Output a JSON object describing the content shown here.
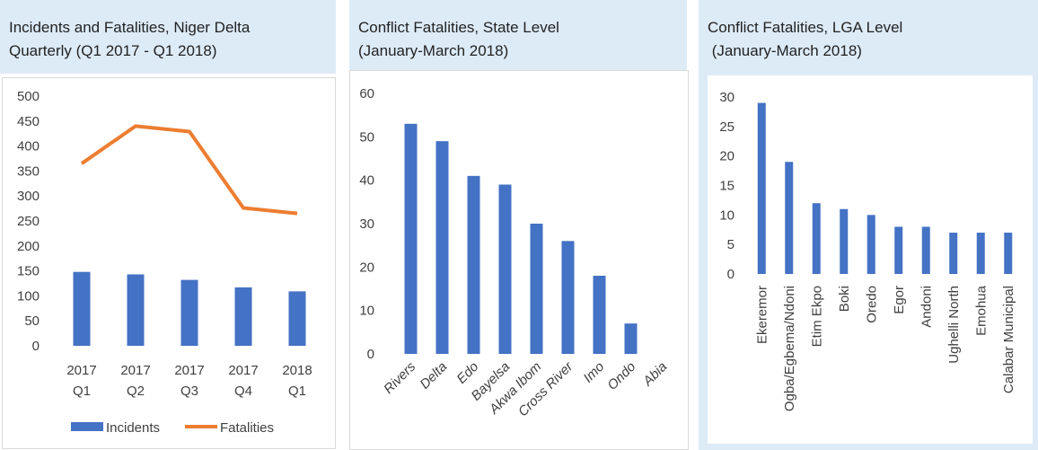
{
  "colors": {
    "bar": "#4472c4",
    "line": "#ed7d31",
    "header": "#ddebf7"
  },
  "panels": [
    {
      "title_line1": "Incidents and Fatalities, Niger Delta",
      "title_line2": "Quarterly (Q1 2017 - Q1 2018)"
    },
    {
      "title_line1": "Conflict Fatalities, State Level",
      "title_line2": "(January-March 2018)"
    },
    {
      "title_line1": "Conflict Fatalities, LGA Level",
      "title_line2": " (January-March 2018)"
    }
  ],
  "chart_data": [
    {
      "type": "bar",
      "title": "Incidents and Fatalities, Niger Delta Quarterly (Q1 2017 - Q1 2018)",
      "categories": [
        [
          "2017",
          "Q1"
        ],
        [
          "2017",
          "Q2"
        ],
        [
          "2017",
          "Q3"
        ],
        [
          "2017",
          "Q4"
        ],
        [
          "2018",
          "Q1"
        ]
      ],
      "series": [
        {
          "name": "Incidents",
          "type": "bar",
          "values": [
            148,
            143,
            132,
            117,
            109
          ]
        },
        {
          "name": "Fatalities",
          "type": "line",
          "values": [
            365,
            440,
            429,
            276,
            265
          ]
        }
      ],
      "ylim": [
        0,
        500
      ],
      "yticks": [
        0,
        50,
        100,
        150,
        200,
        250,
        300,
        350,
        400,
        450,
        500
      ],
      "legend": "bottom",
      "grid": false
    },
    {
      "type": "bar",
      "title": "Conflict Fatalities, State Level (January-March 2018)",
      "categories": [
        "Rivers",
        "Delta",
        "Edo",
        "Bayelsa",
        "Akwa Ibom",
        "Cross River",
        "Imo",
        "Ondo",
        "Abia"
      ],
      "values": [
        53,
        49,
        41,
        39,
        30,
        26,
        18,
        7,
        0
      ],
      "ylim": [
        0,
        60
      ],
      "yticks": [
        0,
        10,
        20,
        30,
        40,
        50,
        60
      ],
      "grid": false
    },
    {
      "type": "bar",
      "title": "Conflict Fatalities, LGA Level (January-March 2018)",
      "categories": [
        "Ekeremor",
        "Ogba/Egbema/Ndoni",
        "Etim Ekpo",
        "Boki",
        "Oredo",
        "Egor",
        "Andoni",
        "Ughelli North",
        "Emohua",
        "Calabar Municipal"
      ],
      "values": [
        29,
        19,
        12,
        11,
        10,
        8,
        8,
        7,
        7,
        7
      ],
      "ylim": [
        0,
        30
      ],
      "yticks": [
        0,
        5,
        10,
        15,
        20,
        25,
        30
      ],
      "grid": false
    }
  ]
}
